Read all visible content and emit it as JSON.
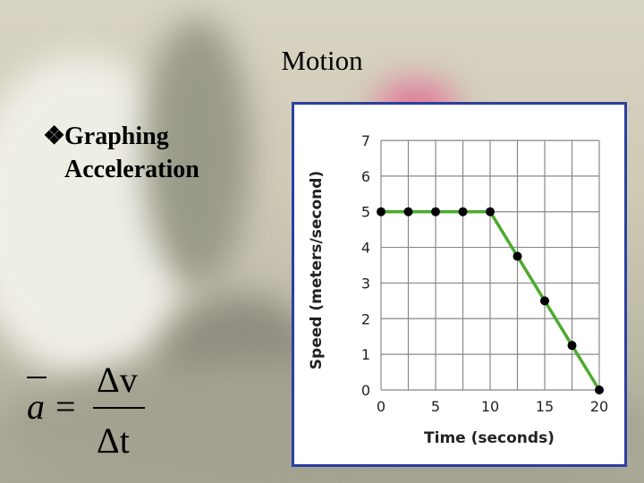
{
  "slide": {
    "title": "Motion",
    "bullet_marker": "❖",
    "bullet_line1": "Graphing",
    "bullet_line2": "Acceleration",
    "formula": {
      "lhs": "a",
      "eq": "=",
      "numerator": "Δv",
      "denominator": "Δt"
    }
  },
  "chart_data": {
    "type": "line",
    "title": "",
    "xlabel": "Time (seconds)",
    "ylabel": "Speed (meters/second)",
    "xlim": [
      0,
      20
    ],
    "ylim": [
      0,
      7
    ],
    "x_ticks": [
      0,
      5,
      10,
      15,
      20
    ],
    "y_ticks": [
      0,
      1,
      2,
      3,
      4,
      5,
      6,
      7
    ],
    "grid": true,
    "line_color": "#4caa2c",
    "point_color": "#000000",
    "series": [
      {
        "x": [
          0,
          2.5,
          5,
          7.5,
          10,
          12.5,
          15,
          17.5,
          20
        ],
        "y": [
          5,
          5,
          5,
          5,
          5,
          3.75,
          2.5,
          1.25,
          0
        ]
      }
    ]
  }
}
